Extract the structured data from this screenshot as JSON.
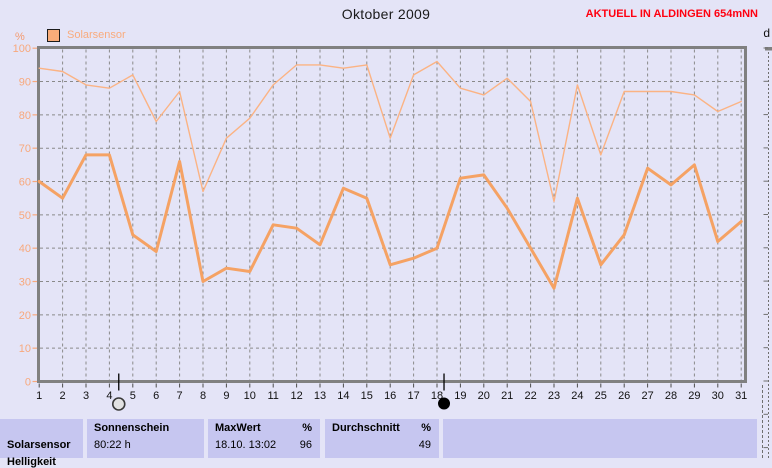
{
  "window": {
    "title": "Oktober 2009",
    "status_right": "AKTUELL IN ALDINGEN 654mNN",
    "edge_fragment": "d"
  },
  "chart_data": {
    "type": "line",
    "title": "Oktober 2009",
    "ylabel": "%",
    "xlabel": "",
    "ylim": [
      0,
      100
    ],
    "ytick_step": 10,
    "grid": true,
    "legend_position": "top-left",
    "legend": [
      {
        "label": "Solarsensor",
        "color": "#f9ac79"
      }
    ],
    "x": [
      1,
      2,
      3,
      4,
      5,
      6,
      7,
      8,
      9,
      10,
      11,
      12,
      13,
      14,
      15,
      16,
      17,
      18,
      19,
      20,
      21,
      22,
      23,
      24,
      25,
      26,
      27,
      28,
      29,
      30,
      31
    ],
    "series": [
      {
        "name": "solarsensor-tagesmaximum",
        "color": "#fbb384",
        "stroke_width": 1.4,
        "values": [
          94,
          93,
          89,
          88,
          92,
          78,
          87,
          57,
          73,
          79,
          89,
          95,
          95,
          94,
          95,
          73,
          92,
          96,
          88,
          86,
          91,
          84,
          54,
          89,
          68,
          87,
          87,
          87,
          86,
          81,
          84
        ]
      },
      {
        "name": "solarsensor-tagesmittel",
        "color": "#f5a264",
        "stroke_width": 3,
        "values": [
          60,
          55,
          68,
          68,
          44,
          39,
          66,
          30,
          34,
          33,
          47,
          46,
          41,
          58,
          55,
          35,
          37,
          40,
          61,
          62,
          52,
          40,
          28,
          55,
          35,
          44,
          64,
          59,
          65,
          42,
          48
        ]
      }
    ],
    "moon_markers": [
      {
        "day": 4.4,
        "phase": "full"
      },
      {
        "day": 18.3,
        "phase": "new"
      }
    ]
  },
  "table": {
    "row_label": "Solarsensor",
    "row_label_2": "Helligkeit",
    "sonnenschein": {
      "header": "Sonnenschein",
      "unit": "",
      "value": "80:22 h",
      "value2": ""
    },
    "maxwert": {
      "header": "MaxWert",
      "unit": "%",
      "value": "18.10.  13:02",
      "value2": "96"
    },
    "durchschnitt": {
      "header": "Durchschnitt",
      "unit": "%",
      "value": "",
      "value2": "49"
    }
  },
  "colors": {
    "page_bg": "#e4e4f7",
    "table_cell_bg": "#c6c6f0",
    "axis_frame": "#808080",
    "grid": "#8a8a8a",
    "y_tick_label": "#f8a87c",
    "x_tick_label": "#111111",
    "status_red": "#ff0010"
  }
}
